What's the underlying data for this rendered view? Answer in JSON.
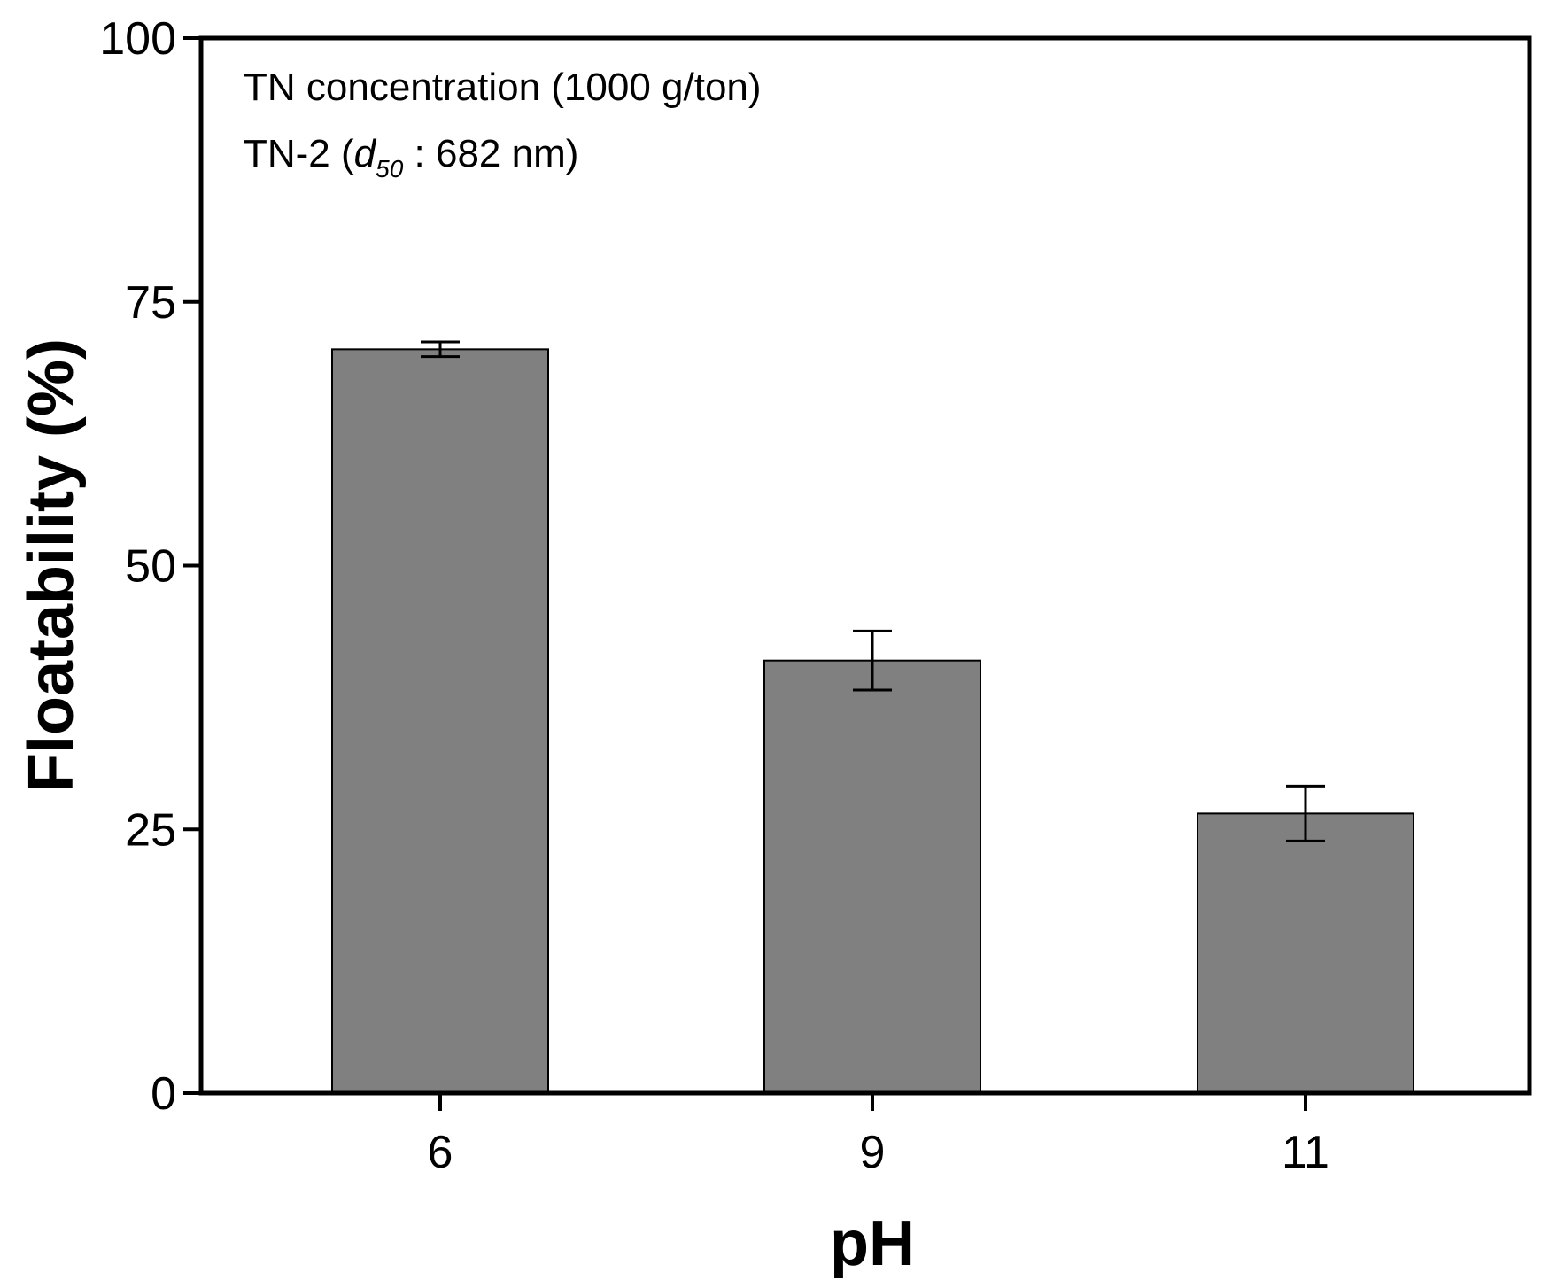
{
  "chart_data": {
    "type": "bar",
    "title": "",
    "xlabel": "pH",
    "ylabel": "Floatability (%)",
    "categories": [
      "6",
      "9",
      "11"
    ],
    "values": [
      70.5,
      41.0,
      26.5
    ],
    "errors": [
      0.7,
      2.8,
      2.6
    ],
    "ylim": [
      0,
      100
    ],
    "yticks": [
      0,
      25,
      50,
      75,
      100
    ],
    "ytick_labels": [
      "0",
      "25",
      "50",
      "75",
      "100"
    ],
    "grid": false,
    "bar_color": "#808080",
    "annotations": {
      "line1": "TN concentration (1000 g/ton)",
      "line2_prefix": "TN-2 (",
      "line2_var": "d",
      "line2_sub": "50",
      "line2_suffix": " : 682 nm)"
    }
  }
}
